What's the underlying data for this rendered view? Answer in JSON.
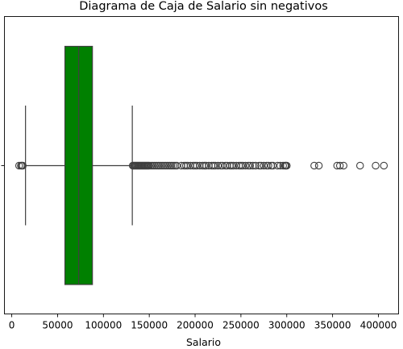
{
  "chart_data": {
    "type": "box",
    "title": "Diagrama de Caja de Salario sin negativos",
    "xlabel": "Salario",
    "ylabel": "",
    "orientation": "horizontal",
    "xlim": [
      -8000,
      422000
    ],
    "xticks": [
      0,
      50000,
      100000,
      150000,
      200000,
      250000,
      300000,
      350000,
      400000
    ],
    "xtick_labels": [
      "0",
      "50000",
      "100000",
      "150000",
      "200000",
      "250000",
      "300000",
      "350000",
      "400000"
    ],
    "box": {
      "color": "#008000",
      "whisker_low": 15000,
      "q1": 58000,
      "median": 73000,
      "q3": 88000,
      "whisker_high": 131500
    },
    "outliers": [
      8000,
      10000,
      11000,
      12000,
      132000,
      133000,
      134000,
      135000,
      136000,
      137000,
      138000,
      139000,
      140000,
      141000,
      142000,
      143000,
      144000,
      145000,
      146000,
      147000,
      148000,
      149000,
      150000,
      152000,
      154000,
      156000,
      158000,
      160000,
      162000,
      164000,
      166000,
      168000,
      170000,
      172000,
      174000,
      176000,
      178000,
      180000,
      185000,
      188000,
      190000,
      192000,
      195000,
      198000,
      200000,
      202000,
      205000,
      208000,
      210000,
      212000,
      215000,
      218000,
      220000,
      222000,
      225000,
      228000,
      230000,
      233000,
      235000,
      238000,
      240000,
      242000,
      245000,
      248000,
      250000,
      252000,
      255000,
      258000,
      260000,
      263000,
      266000,
      270000,
      272000,
      275000,
      278000,
      280000,
      283000,
      285000,
      290000,
      293000,
      296000,
      298000,
      299000,
      300000,
      330000,
      335000,
      355000,
      358000,
      362000,
      380000,
      397000,
      406000
    ]
  }
}
